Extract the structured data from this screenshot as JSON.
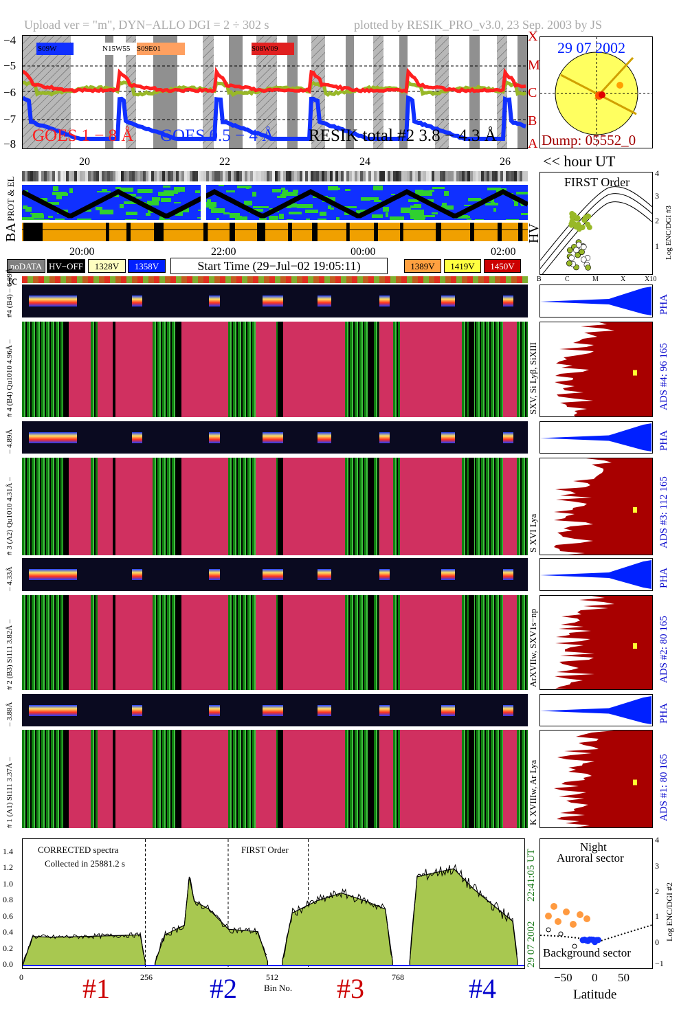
{
  "header": {
    "left": "Upload ver = \"m\", DYN−ALLO DGI =   2 ÷ 302 s",
    "right": "plotted by RESIK_PRO_v3.0, 23 Sep. 2003 by JS"
  },
  "goes_panel": {
    "y_ticks": [
      "−4",
      "−5",
      "−6",
      "−7",
      "−8"
    ],
    "class_labels": [
      "X",
      "M",
      "C",
      "B",
      "A"
    ],
    "active_regions": [
      "S09W",
      "N15W55",
      "S09E01",
      "S08W09"
    ],
    "legend": {
      "goes_long": "GOES 1 − 8 Å",
      "goes_short": "GOES 0.5 − 4 Å",
      "resik": "RESIK total #2  3.8 − 4.3 Å"
    },
    "colors": {
      "goes_long": "#ff2020",
      "goes_short": "#1030ff",
      "resik": "#000000",
      "flare": "#ffa060",
      "green": "#98b828"
    }
  },
  "sun_panel": {
    "date": "29 07 2002",
    "dump": "Dump: 05552_0"
  },
  "hour_axis": {
    "ticks": [
      "20",
      "22",
      "24",
      "26"
    ],
    "label": "<< hour UT"
  },
  "orbit_panel": {
    "label_prot_el": "PROT & EL",
    "label_ba": "BA",
    "label_hv": "HV"
  },
  "time_axis": {
    "ticks": [
      "20:00",
      "22:00",
      "00:00",
      "02:00"
    ]
  },
  "hv_legend": {
    "items": [
      {
        "label": "noDATA",
        "color": "#808080",
        "text": "#ffffff"
      },
      {
        "label": "HV−OFF",
        "color": "#000000",
        "text": "#ffffff"
      },
      {
        "label": "1328V",
        "color": "#ffffc0",
        "text": "#000000"
      },
      {
        "label": "1358V",
        "color": "#0020ff",
        "text": "#ffffff"
      },
      {
        "label": "1389V",
        "color": "#ffa040",
        "text": "#000000"
      },
      {
        "label": "1419V",
        "color": "#ffff40",
        "text": "#000000"
      },
      {
        "label": "1450V",
        "color": "#cc0000",
        "text": "#ffffff"
      }
    ],
    "start_time": "Start Time (29−Jul−02 19:05:11)"
  },
  "tc_label": "tc",
  "first_order_panel": {
    "title": "FIRST Order",
    "x_ticks": [
      "B",
      "C",
      "M",
      "X",
      "X10"
    ],
    "y_ticks": [
      "1",
      "2",
      "3",
      "4"
    ],
    "ylabel": "Log ENC/DGI #3"
  },
  "channels": [
    {
      "pha_label": "#4 (B4) – 6.09Å",
      "spec_label": "# 4 (B4) Qu1010 4.96Å –",
      "line_label": "SXV, Si Lyβ, SiXIII",
      "ads": "ADS #4:  96 165",
      "pha": "PHA"
    },
    {
      "pha_label": "– 4.89Å",
      "spec_label": "# 3 (A2) Qu1010 4.31Å –",
      "line_label": "S XVI Lya",
      "ads": "ADS #3:  112 165",
      "pha": "PHA"
    },
    {
      "pha_label": "– 4.33Å",
      "spec_label": "# 2 (B3) Si111  3.82Å –",
      "line_label": "ArXVIIw, SXV1s−np",
      "ads": "ADS #2:  80 165",
      "pha": "PHA"
    },
    {
      "pha_label": "– 3.88Å",
      "spec_label": "# 1 (A1) Si111  3.37Å –",
      "line_label": "K XVIIIw, Ar Lya",
      "ads": "ADS #1:  80 165",
      "pha": "PHA"
    }
  ],
  "bottom_spectrum": {
    "note1": "CORRECTED spectra",
    "note2": "Collected in 25881.2 s",
    "note3": "FIRST Order",
    "y_ticks": [
      "0.0",
      "0.2",
      "0.4",
      "0.6",
      "0.8",
      "1.0",
      "1.2",
      "1.4"
    ],
    "x_ticks": [
      "0",
      "256",
      "512",
      "768"
    ],
    "xlabel": "Bin No.",
    "side_time": "22:41:05 UT",
    "side_date": "29 07 2002",
    "bin_labels": [
      {
        "text": "#1",
        "color": "#cc0000"
      },
      {
        "text": "#2",
        "color": "#0000cc"
      },
      {
        "text": "#3",
        "color": "#cc0000"
      },
      {
        "text": "#4",
        "color": "#0000cc"
      }
    ]
  },
  "latitude_panel": {
    "title1": "Night",
    "title2": "Auroral sector",
    "bottom": "Background sector",
    "x_ticks": [
      "−50",
      "0",
      "50"
    ],
    "xlabel": "Latitude",
    "y_ticks": [
      "−1",
      "0",
      "1",
      "2",
      "3",
      "4"
    ],
    "ylabel": "Log ENC/DGI #2"
  },
  "chart_data": {
    "type": "area",
    "title": "CORRECTED spectra",
    "xlabel": "Bin No.",
    "ylabel": "",
    "ylim": [
      0,
      1.5
    ],
    "xlim": [
      0,
      1024
    ],
    "series": [
      {
        "name": "#1",
        "x": [
          0,
          20,
          60,
          120,
          180,
          240,
          250
        ],
        "values": [
          0.0,
          0.36,
          0.35,
          0.36,
          0.37,
          0.38,
          0.05
        ]
      },
      {
        "name": "#2",
        "x": [
          270,
          290,
          330,
          340,
          350,
          380,
          420,
          480,
          500
        ],
        "values": [
          0.03,
          0.38,
          0.5,
          1.1,
          0.8,
          0.7,
          0.45,
          0.42,
          0.05
        ]
      },
      {
        "name": "#3",
        "x": [
          530,
          550,
          600,
          650,
          700,
          740,
          755
        ],
        "values": [
          0.05,
          0.65,
          0.8,
          0.9,
          0.8,
          0.7,
          0.05
        ]
      },
      {
        "name": "#4",
        "x": [
          790,
          805,
          840,
          880,
          920,
          960,
          1000,
          1010
        ],
        "values": [
          0.05,
          1.1,
          1.15,
          1.2,
          0.95,
          0.75,
          0.55,
          0.05
        ]
      }
    ],
    "line_color": "#000000",
    "fill_color": "#a8c850"
  }
}
